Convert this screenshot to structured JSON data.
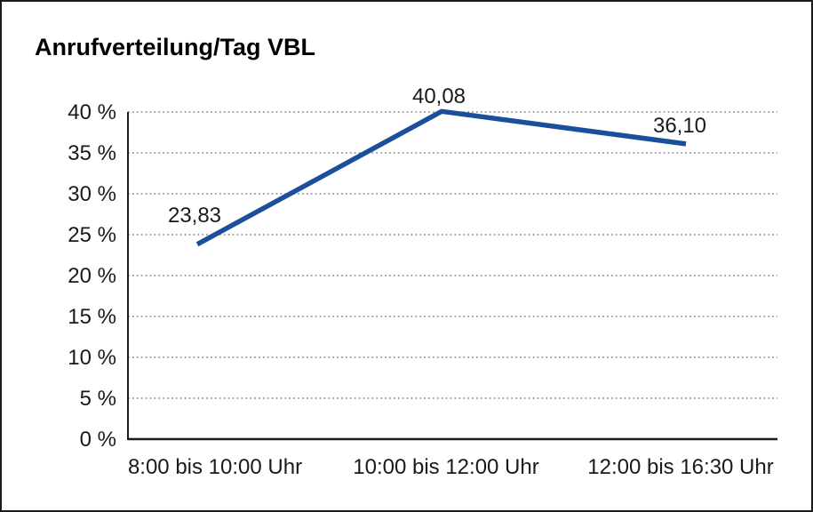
{
  "chart_data": {
    "type": "line",
    "title": "Anrufverteilung/Tag VBL",
    "categories": [
      "8:00 bis 10:00 Uhr",
      "10:00 bis 12:00 Uhr",
      "12:00 bis 16:30 Uhr"
    ],
    "values": [
      23.83,
      40.08,
      36.1
    ],
    "value_labels": [
      "23,83",
      "40,08",
      "36,10"
    ],
    "y_ticks": [
      "40 %",
      "35 %",
      "30 %",
      "25 %",
      "20 %",
      "15 %",
      "10 %",
      "5 %",
      "0 %"
    ],
    "ylim": [
      0,
      40
    ],
    "ytick_step": 5,
    "xlabel": "",
    "ylabel": "",
    "grid": "dotted-horizontal",
    "legend": "none",
    "colors": {
      "line": "#1B4F9B",
      "axis": "#1a1a1a",
      "gridline": "#6f6f6f",
      "text": "#1a1a1a",
      "frame_border": "#1a1a1a",
      "background": "#ffffff"
    }
  }
}
